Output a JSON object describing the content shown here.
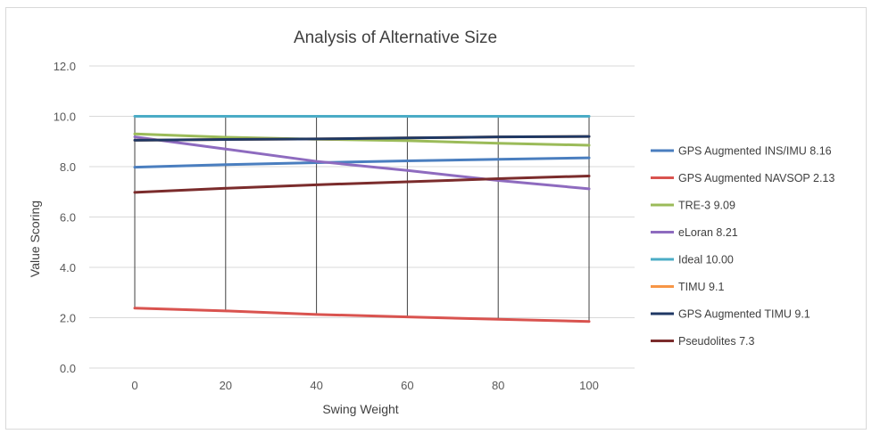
{
  "chart_data": {
    "type": "line",
    "title": "Analysis of Alternative Size",
    "xlabel": "Swing Weight",
    "ylabel": "Value Scoring",
    "x": [
      0,
      20,
      40,
      60,
      80,
      100
    ],
    "x_ticks": [
      "0",
      "20",
      "40",
      "60",
      "80",
      "100"
    ],
    "ylim": [
      0,
      12
    ],
    "y_ticks": [
      "0.0",
      "2.0",
      "4.0",
      "6.0",
      "8.0",
      "10.0",
      "12.0"
    ],
    "y_tick_values": [
      0,
      2,
      4,
      6,
      8,
      10,
      12
    ],
    "grid": "horizontal",
    "drop_lines": true,
    "legend_position": "right",
    "series": [
      {
        "name": "GPS Augmented INS/IMU  8.16",
        "color": "#4a7ebf",
        "values": [
          7.98,
          8.08,
          8.16,
          8.23,
          8.29,
          8.35
        ]
      },
      {
        "name": "GPS Augmented NAVSOP 2.13",
        "color": "#d9534f",
        "values": [
          2.38,
          2.27,
          2.13,
          2.03,
          1.94,
          1.85
        ]
      },
      {
        "name": "TRE-3 9.09",
        "color": "#9bbb59",
        "values": [
          9.3,
          9.17,
          9.09,
          9.03,
          8.93,
          8.85
        ]
      },
      {
        "name": "eLoran 8.21",
        "color": "#8e6bbf",
        "values": [
          9.18,
          8.7,
          8.21,
          7.85,
          7.45,
          7.12
        ]
      },
      {
        "name": "Ideal 10.00",
        "color": "#4bacc6",
        "values": [
          10.0,
          10.0,
          10.0,
          10.0,
          10.0,
          10.0
        ]
      },
      {
        "name": "TIMU 9.1",
        "color": "#f79646",
        "values": [
          9.05,
          9.08,
          9.1,
          9.14,
          9.18,
          9.2
        ]
      },
      {
        "name": "GPS Augmented TIMU 9.1",
        "color": "#1f3864",
        "values": [
          9.05,
          9.08,
          9.1,
          9.14,
          9.18,
          9.2
        ]
      },
      {
        "name": "Pseudolites 7.3",
        "color": "#7b2c2c",
        "values": [
          6.98,
          7.14,
          7.28,
          7.4,
          7.52,
          7.63
        ]
      }
    ]
  }
}
